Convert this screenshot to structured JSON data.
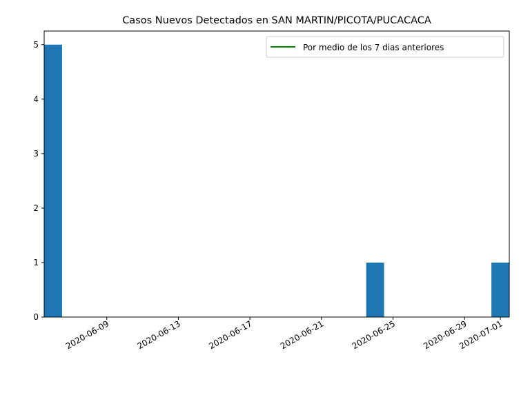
{
  "chart_data": {
    "type": "bar",
    "title": "Casos Nuevos Detectados en SAN MARTIN/PICOTA/PUCACACA",
    "xlabel": "",
    "ylabel": "",
    "x_range": [
      "2020-06-06",
      "2020-07-01"
    ],
    "ylim": [
      0,
      5.25
    ],
    "bar_color": "#1f77b4",
    "bars": [
      {
        "date": "2020-06-06",
        "value": 5
      },
      {
        "date": "2020-06-24",
        "value": 1
      },
      {
        "date": "2020-07-01",
        "value": 1
      }
    ],
    "yticks": [
      0,
      1,
      2,
      3,
      4,
      5
    ],
    "xticks": [
      "2020-06-09",
      "2020-06-13",
      "2020-06-17",
      "2020-06-21",
      "2020-06-25",
      "2020-06-29",
      "2020-07-01"
    ],
    "legend": {
      "position": "upper right",
      "entries": [
        {
          "label": "Por medio de los 7 dias anteriores",
          "color": "#008000",
          "style": "line"
        }
      ]
    },
    "grid": false
  }
}
